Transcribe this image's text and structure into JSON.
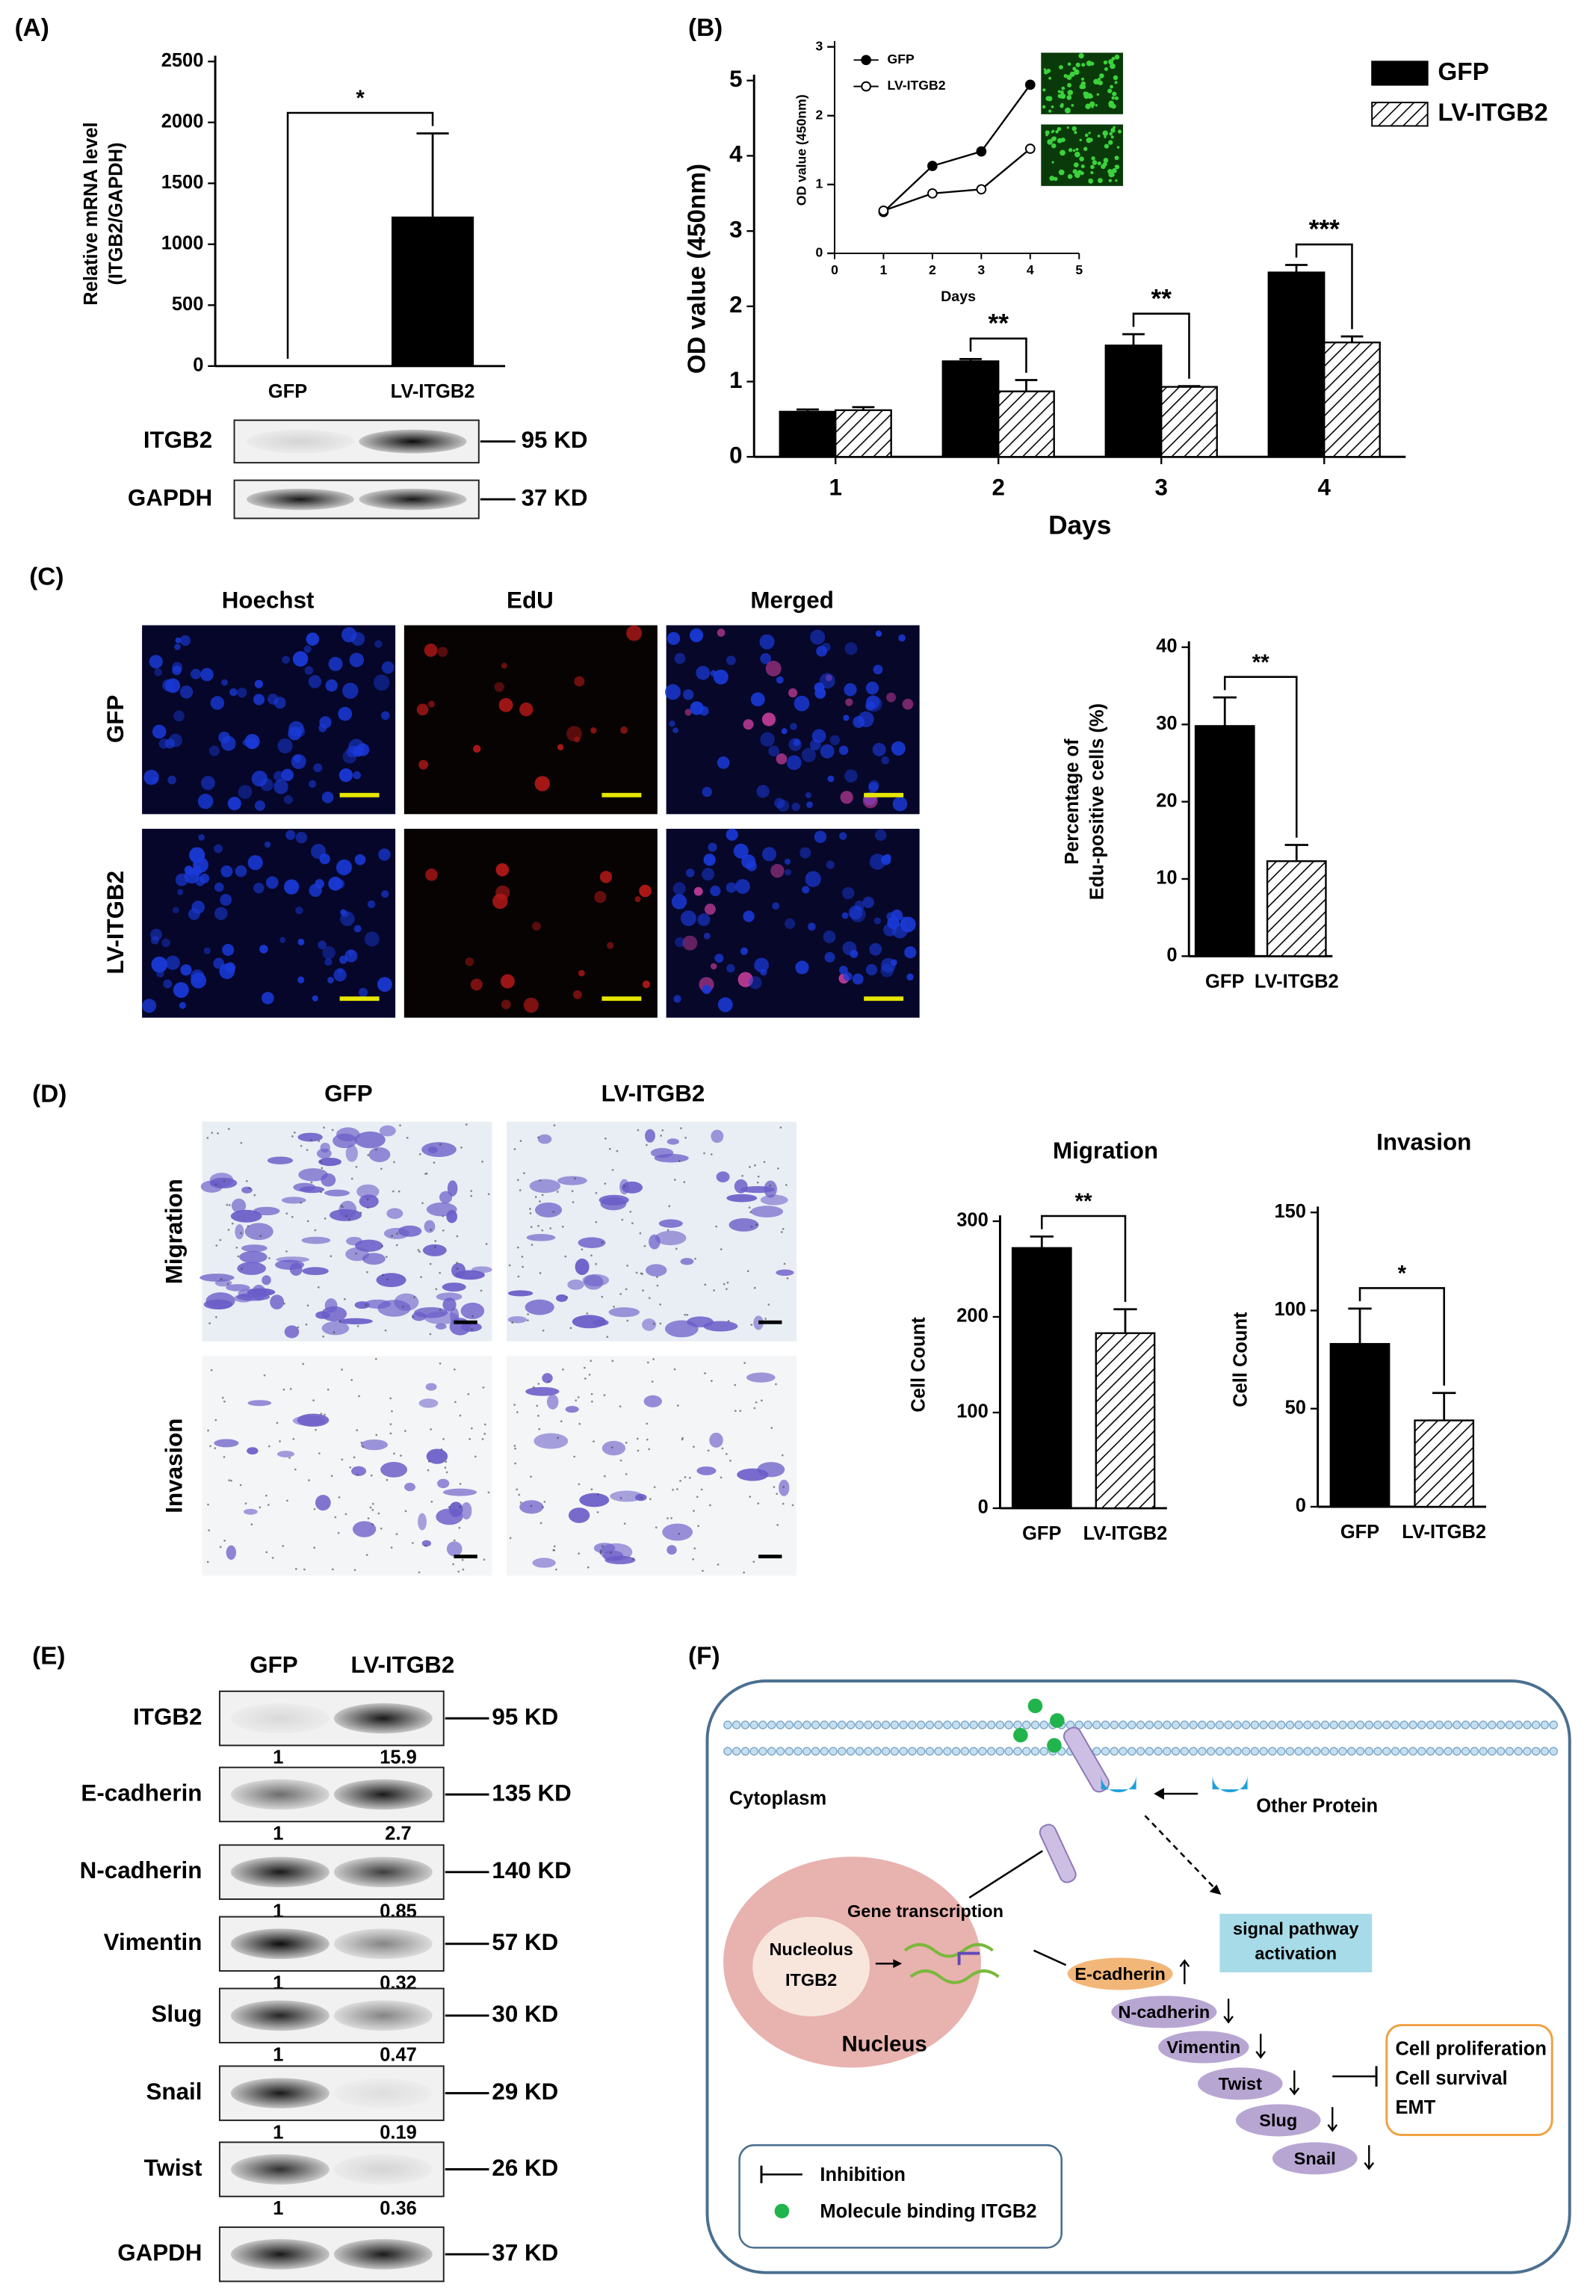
{
  "panel_labels": [
    "(A)",
    "(B)",
    "(C)",
    "(D)",
    "(E)",
    "(F)"
  ],
  "chart_data": [
    {
      "type": "bar",
      "ylabel": [
        "Relative mRNA level",
        "(ITGB2/GAPDH)"
      ],
      "categories": [
        "GFP",
        "LV-ITGB2"
      ],
      "values": [
        0,
        1220
      ],
      "errors": [
        null,
        690
      ],
      "colors": [
        "#000000",
        "#000000"
      ],
      "hatch": [
        false,
        false
      ],
      "ylim": [
        0,
        2500
      ],
      "yticks": [
        0,
        500,
        1000,
        1500,
        2000,
        2500
      ],
      "annotations": [
        "*"
      ]
    },
    {
      "type": "grouped_bar",
      "xlabel": "Days",
      "ylabel": [
        "OD value (450nm)"
      ],
      "categories": [
        "1",
        "2",
        "3",
        "4"
      ],
      "series": [
        {
          "name": "GFP",
          "color": "#000000",
          "hatch": false,
          "values": [
            0.6,
            1.27,
            1.48,
            2.45
          ],
          "errors": [
            0.03,
            0.03,
            0.15,
            0.1
          ]
        },
        {
          "name": "LV-ITGB2",
          "color": "#ffffff",
          "hatch": true,
          "values": [
            0.62,
            0.87,
            0.93,
            1.52
          ],
          "errors": [
            0.04,
            0.15,
            0.01,
            0.08
          ]
        }
      ],
      "ylim": [
        0,
        5
      ],
      "yticks": [
        0,
        1,
        2,
        3,
        4,
        5
      ],
      "annotations": [
        null,
        "**",
        "**",
        "***"
      ],
      "legend": "upper right"
    },
    {
      "type": "line",
      "xlabel": "Days",
      "ylabel": [
        "OD value (450nm)"
      ],
      "x": [
        1,
        2,
        3,
        4
      ],
      "series": [
        {
          "name": "GFP",
          "marker": "filled",
          "values": [
            0.6,
            1.27,
            1.48,
            2.45
          ]
        },
        {
          "name": "LV-ITGB2",
          "marker": "open",
          "values": [
            0.62,
            0.87,
            0.93,
            1.52
          ]
        }
      ],
      "xlim": [
        0,
        5
      ],
      "xticks": [
        0,
        1,
        2,
        3,
        4,
        5
      ],
      "ylim": [
        0,
        3
      ],
      "yticks": [
        0,
        1,
        2,
        3
      ],
      "legend": "upper left"
    },
    {
      "type": "bar",
      "ylabel": [
        "Percentage of",
        "Edu-positive cells (%)"
      ],
      "categories": [
        "GFP",
        "LV-ITGB2"
      ],
      "values": [
        29.8,
        12.3
      ],
      "errors": [
        3.7,
        2.1
      ],
      "colors": [
        "#000000",
        "#ffffff"
      ],
      "hatch": [
        false,
        true
      ],
      "ylim": [
        0,
        40
      ],
      "yticks": [
        0,
        10,
        20,
        30,
        40
      ],
      "annotations": [
        "**"
      ]
    },
    {
      "type": "bar",
      "title": "Migration",
      "ylabel": [
        "Cell Count"
      ],
      "categories": [
        "GFP",
        "LV-ITGB2"
      ],
      "values": [
        272,
        183
      ],
      "errors": [
        12,
        25
      ],
      "colors": [
        "#000000",
        "#ffffff"
      ],
      "hatch": [
        false,
        true
      ],
      "ylim": [
        0,
        300
      ],
      "yticks": [
        0,
        100,
        200,
        300
      ],
      "annotations": [
        "**"
      ]
    },
    {
      "type": "bar",
      "title": "Invasion",
      "ylabel": [
        "Cell Count"
      ],
      "categories": [
        "GFP",
        "LV-ITGB2"
      ],
      "values": [
        83,
        44
      ],
      "errors": [
        18,
        14
      ],
      "colors": [
        "#000000",
        "#ffffff"
      ],
      "hatch": [
        false,
        true
      ],
      "ylim": [
        0,
        150
      ],
      "yticks": [
        0,
        50,
        100,
        150
      ],
      "annotations": [
        "*"
      ]
    }
  ],
  "panel_a_blot": {
    "rows": [
      {
        "label": "ITGB2",
        "size": "95 KD"
      },
      {
        "label": "GAPDH",
        "size": "37 KD"
      }
    ]
  },
  "panel_c_images": {
    "columns": [
      "Hoechst",
      "EdU",
      "Merged"
    ],
    "rows": [
      "GFP",
      "LV-ITGB2"
    ]
  },
  "panel_d_images": {
    "columns": [
      "GFP",
      "LV-ITGB2"
    ],
    "rows": [
      "Migration",
      "Invasion"
    ]
  },
  "panel_e_blot": {
    "columns": [
      "GFP",
      "LV-ITGB2"
    ],
    "rows": [
      {
        "label": "ITGB2",
        "size": "95 KD",
        "ratios": [
          1,
          15.9
        ]
      },
      {
        "label": "E-cadherin",
        "size": "135 KD",
        "ratios": [
          1,
          2.7
        ]
      },
      {
        "label": "N-cadherin",
        "size": "140 KD",
        "ratios": [
          1,
          0.85
        ]
      },
      {
        "label": "Vimentin",
        "size": "57 KD",
        "ratios": [
          1,
          0.32
        ]
      },
      {
        "label": "Slug",
        "size": "30 KD",
        "ratios": [
          1,
          0.47
        ]
      },
      {
        "label": "Snail",
        "size": "29 KD",
        "ratios": [
          1,
          0.19
        ]
      },
      {
        "label": "Twist",
        "size": "26 KD",
        "ratios": [
          1,
          0.36
        ]
      },
      {
        "label": "GAPDH",
        "size": "37 KD"
      }
    ]
  },
  "panel_f": {
    "cytoplasm": "Cytoplasm",
    "other_protein": "Other Protein",
    "gene_transcription": "Gene transcription",
    "nucleolus": "Nucleolus",
    "itgb2": "ITGB2",
    "nucleus": "Nucleus",
    "signal": [
      "signal pathway",
      "activation"
    ],
    "cascade": [
      "E-cadherin",
      "N-cadherin",
      "Vimentin",
      "Twist",
      "Slug",
      "Snail"
    ],
    "outcomes": [
      "Cell proliferation",
      "Cell survival",
      "EMT"
    ],
    "legend": [
      "Inhibition",
      "Molecule binding ITGB2"
    ]
  }
}
